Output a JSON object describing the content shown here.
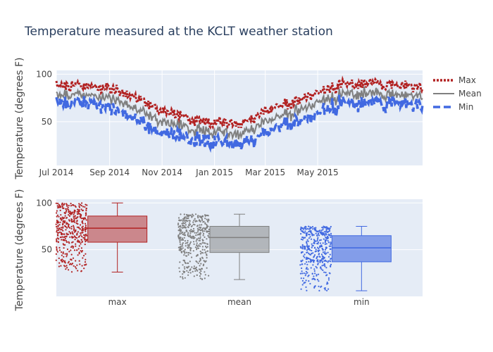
{
  "chart_data": [
    {
      "type": "line",
      "title": "Temperature measured at the KCLT weather station",
      "ylabel": "Temperature (degrees F)",
      "x_range": [
        "2014-07-01",
        "2016-01-01"
      ],
      "x_ticks": [
        "Jul 2014",
        "Sep 2014",
        "Nov 2014",
        "Jan 2015",
        "Mar 2015",
        "May 2015"
      ],
      "y_ticks": [
        50,
        100
      ],
      "ylim": [
        4,
        104
      ],
      "grid": true,
      "legend_position": "right",
      "seasonal_points": [
        {
          "date": "2014-07-01",
          "max": 88,
          "mean": 78,
          "min": 70
        },
        {
          "date": "2014-08-01",
          "max": 88,
          "mean": 78,
          "min": 70
        },
        {
          "date": "2014-09-01",
          "max": 86,
          "mean": 76,
          "min": 66
        },
        {
          "date": "2014-10-01",
          "max": 76,
          "mean": 64,
          "min": 53
        },
        {
          "date": "2014-11-01",
          "max": 61,
          "mean": 49,
          "min": 37
        },
        {
          "date": "2014-12-01",
          "max": 53,
          "mean": 43,
          "min": 32
        },
        {
          "date": "2015-01-01",
          "max": 50,
          "mean": 39,
          "min": 29
        },
        {
          "date": "2015-02-01",
          "max": 48,
          "mean": 37,
          "min": 26
        },
        {
          "date": "2015-03-01",
          "max": 60,
          "mean": 49,
          "min": 38
        },
        {
          "date": "2015-04-01",
          "max": 72,
          "mean": 61,
          "min": 50
        },
        {
          "date": "2015-05-01",
          "max": 80,
          "mean": 70,
          "min": 58
        },
        {
          "date": "2015-06-01",
          "max": 89,
          "mean": 79,
          "min": 69
        },
        {
          "date": "2015-07-01",
          "max": 91,
          "mean": 80,
          "min": 71
        },
        {
          "date": "2015-08-01",
          "max": 88,
          "mean": 78,
          "min": 69
        }
      ],
      "series": [
        {
          "name": "Max",
          "key": "max",
          "color": "#b22222",
          "style": "dotted"
        },
        {
          "name": "Mean",
          "key": "mean",
          "color": "#808080",
          "style": "solid"
        },
        {
          "name": "Min",
          "key": "min",
          "color": "#4169e1",
          "style": "dashed"
        }
      ]
    },
    {
      "type": "box",
      "ylabel": "Temperature (degrees F)",
      "categories": [
        "max",
        "mean",
        "min"
      ],
      "y_ticks": [
        50,
        100
      ],
      "ylim": [
        0,
        104
      ],
      "grid": true,
      "boxes": [
        {
          "name": "max",
          "min": 26,
          "q1": 58,
          "median": 73,
          "q3": 86,
          "max": 100,
          "color": "#b22222"
        },
        {
          "name": "mean",
          "min": 18,
          "q1": 47,
          "median": 63,
          "q3": 75,
          "max": 88,
          "color": "#808080"
        },
        {
          "name": "min",
          "min": 6,
          "q1": 37,
          "median": 52,
          "q3": 65,
          "max": 75,
          "color": "#4169e1"
        }
      ]
    }
  ],
  "legend": {
    "items": [
      {
        "label": "Max",
        "color": "#b22222",
        "dash": "3,2"
      },
      {
        "label": "Mean",
        "color": "#808080",
        "dash": ""
      },
      {
        "label": "Min",
        "color": "#4169e1",
        "dash": "10,5"
      }
    ]
  }
}
